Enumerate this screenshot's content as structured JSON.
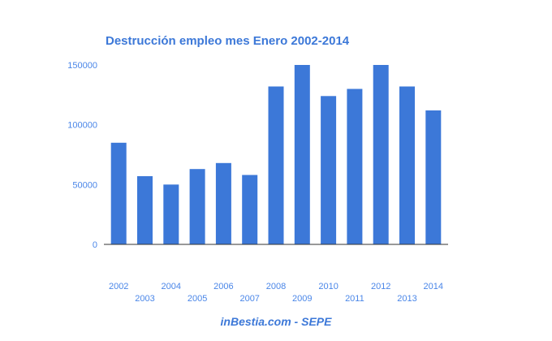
{
  "chart_data": {
    "type": "bar",
    "title": "Destrucción empleo mes Enero 2002-2014",
    "categories": [
      "2002",
      "2003",
      "2004",
      "2005",
      "2006",
      "2007",
      "2008",
      "2009",
      "2010",
      "2011",
      "2012",
      "2013",
      "2014"
    ],
    "values": [
      85000,
      57000,
      50000,
      63000,
      68000,
      58000,
      132000,
      150000,
      124000,
      130000,
      150000,
      132000,
      112000
    ],
    "xlabel": "",
    "ylabel": "",
    "ylim": [
      0,
      150000
    ],
    "yticks": [
      "0",
      "50000",
      "100000",
      "150000"
    ],
    "grid": false,
    "legend": "none",
    "bar_color": "#3c78d8",
    "title_color": "#3c78d8",
    "label_color": "#4a86e8",
    "axis_color": "#333333"
  },
  "source": "inBestia.com - SEPE"
}
